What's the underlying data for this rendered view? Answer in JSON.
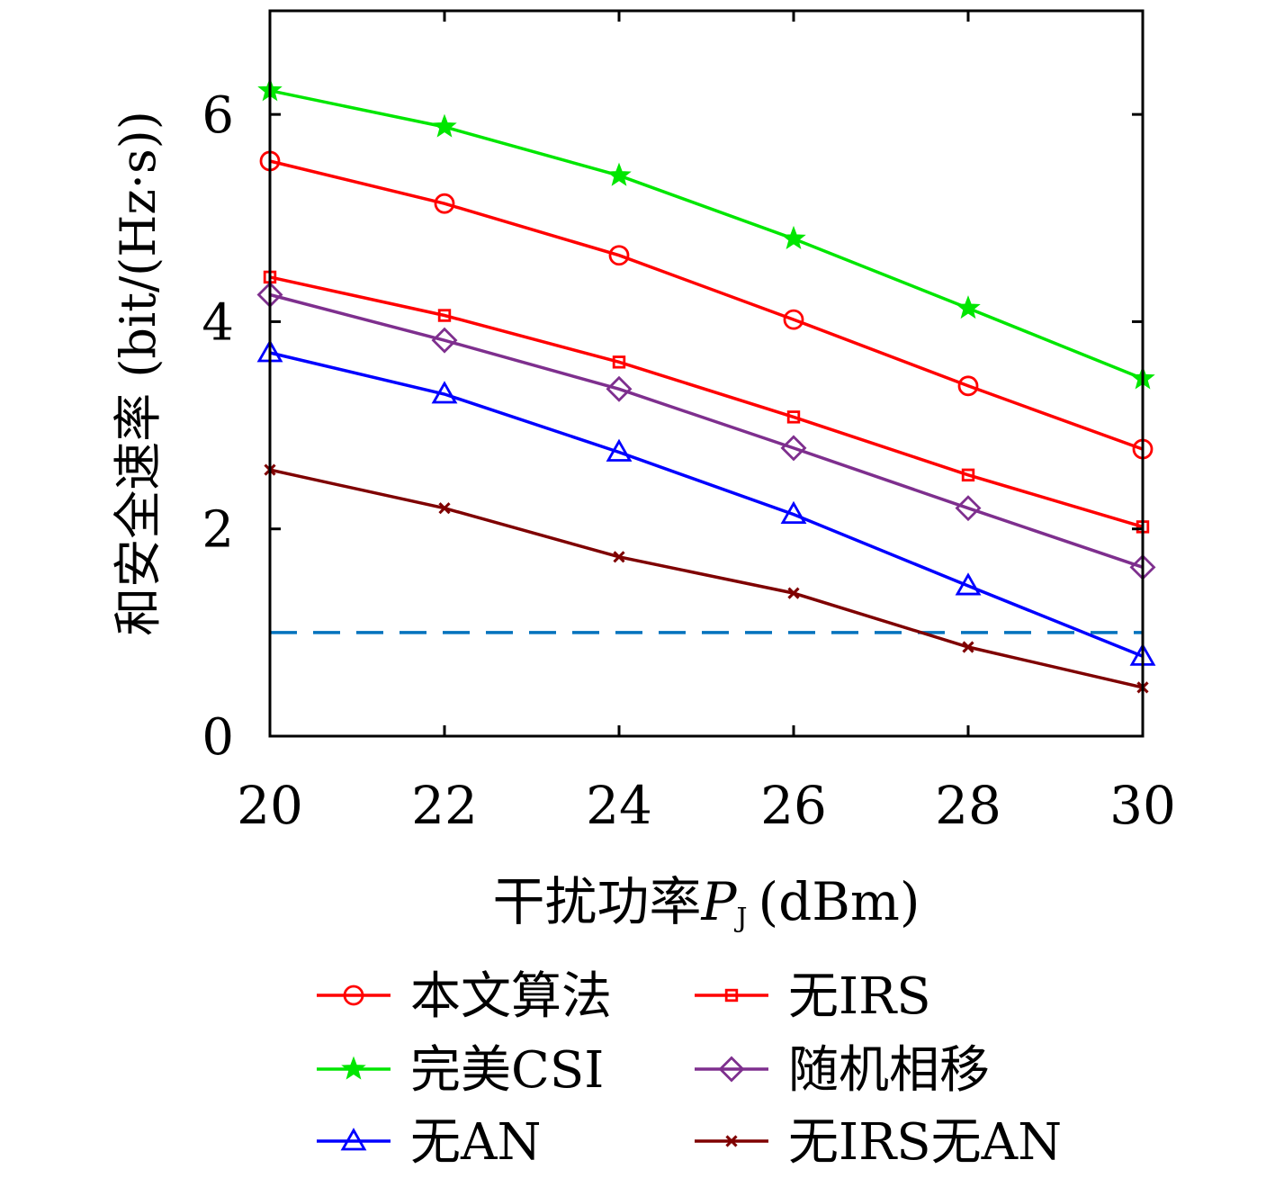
{
  "chart_data": {
    "type": "line",
    "xlabel": "干扰功率",
    "xlabel_var": "P",
    "xlabel_sub": "J",
    "xlabel_unit": "(dBm)",
    "ylabel": "和安全速率 (bit/(Hz·s))",
    "x": [
      20,
      22,
      24,
      26,
      28,
      30
    ],
    "xlim": [
      20,
      30
    ],
    "ylim": [
      0,
      7
    ],
    "xticks": [
      "20",
      "22",
      "24",
      "26",
      "28",
      "30"
    ],
    "yticks": [
      "0",
      "2",
      "4",
      "6"
    ],
    "grid": false,
    "legend_position": "bottom",
    "series": [
      {
        "name": "本文算法",
        "color": "#ff0000",
        "marker": "circle",
        "values": [
          5.55,
          5.14,
          4.64,
          4.02,
          3.38,
          2.77
        ]
      },
      {
        "name": "完美CSI",
        "color": "#00e600",
        "marker": "star",
        "values": [
          6.23,
          5.88,
          5.41,
          4.8,
          4.13,
          3.45
        ]
      },
      {
        "name": "无AN",
        "color": "#0000ff",
        "marker": "triangle",
        "values": [
          3.7,
          3.3,
          2.74,
          2.14,
          1.45,
          0.77
        ]
      },
      {
        "name": "无IRS",
        "color": "#ff0000",
        "marker": "square",
        "values": [
          4.43,
          4.06,
          3.61,
          3.08,
          2.52,
          2.02
        ]
      },
      {
        "name": "随机相移",
        "color": "#7e2f8e",
        "marker": "diamond",
        "values": [
          4.26,
          3.82,
          3.35,
          2.78,
          2.2,
          1.63
        ]
      },
      {
        "name": "无IRS无AN",
        "color": "#7f0000",
        "marker": "x",
        "values": [
          2.57,
          2.2,
          1.73,
          1.38,
          0.86,
          0.47
        ]
      }
    ],
    "reference_line": {
      "y": 1.0,
      "color": "#0072bd",
      "style": "dashed"
    }
  }
}
